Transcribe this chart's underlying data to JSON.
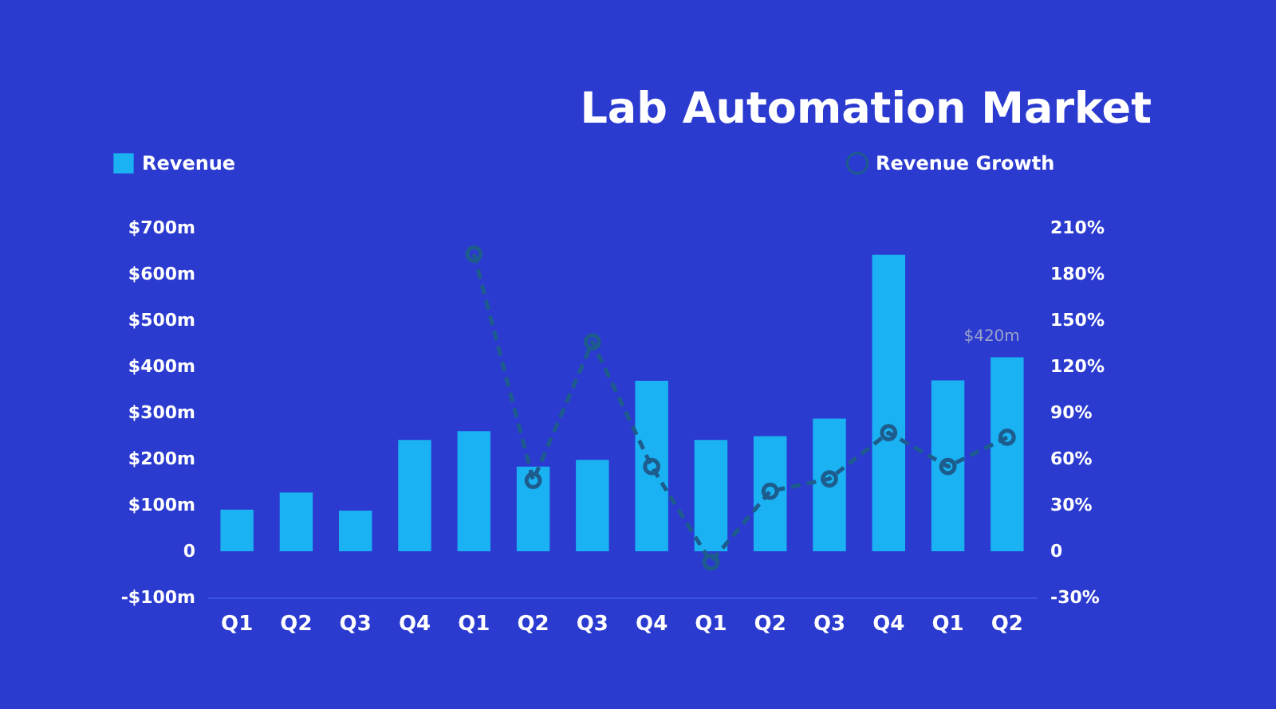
{
  "chart_data": {
    "type": "bar",
    "title": "Lab Automation Market",
    "categories": [
      "Q1",
      "Q2",
      "Q3",
      "Q4",
      "Q1",
      "Q2",
      "Q3",
      "Q4",
      "Q1",
      "Q2",
      "Q3",
      "Q4",
      "Q1",
      "Q2"
    ],
    "series": [
      {
        "name": "Revenue",
        "color": "#1ab2f2",
        "values": [
          90,
          127,
          88,
          241,
          260,
          183,
          198,
          369,
          241,
          249,
          287,
          642,
          370,
          420
        ],
        "value_labels": [
          null,
          null,
          null,
          null,
          null,
          null,
          null,
          null,
          null,
          null,
          null,
          null,
          null,
          "$420m"
        ]
      },
      {
        "name": "Revenue Growth",
        "type": "line",
        "axis": "y2",
        "color": "#1d5c8c",
        "line_style": "dashed",
        "values": [
          null,
          null,
          null,
          null,
          193,
          46,
          136,
          55,
          -7,
          39,
          47,
          77,
          55,
          74
        ]
      }
    ],
    "ylim": [
      -100,
      700
    ],
    "yticks": [
      {
        "value": -100,
        "label": "-$100m"
      },
      {
        "value": 0,
        "label": "0"
      },
      {
        "value": 100,
        "label": "$100m"
      },
      {
        "value": 200,
        "label": "$200m"
      },
      {
        "value": 300,
        "label": "$300m"
      },
      {
        "value": 400,
        "label": "$400m"
      },
      {
        "value": 500,
        "label": "$500m"
      },
      {
        "value": 600,
        "label": "$600m"
      },
      {
        "value": 700,
        "label": "$700m"
      }
    ],
    "y2lim": [
      -30,
      210
    ],
    "y2ticks": [
      {
        "value": -30,
        "label": "-30%"
      },
      {
        "value": 0,
        "label": "0"
      },
      {
        "value": 30,
        "label": "30%"
      },
      {
        "value": 60,
        "label": "60%"
      },
      {
        "value": 90,
        "label": "90%"
      },
      {
        "value": 120,
        "label": "120%"
      },
      {
        "value": 150,
        "label": "150%"
      },
      {
        "value": 180,
        "label": "180%"
      },
      {
        "value": 210,
        "label": "210%"
      }
    ],
    "legend": "top",
    "marker": "circle"
  }
}
